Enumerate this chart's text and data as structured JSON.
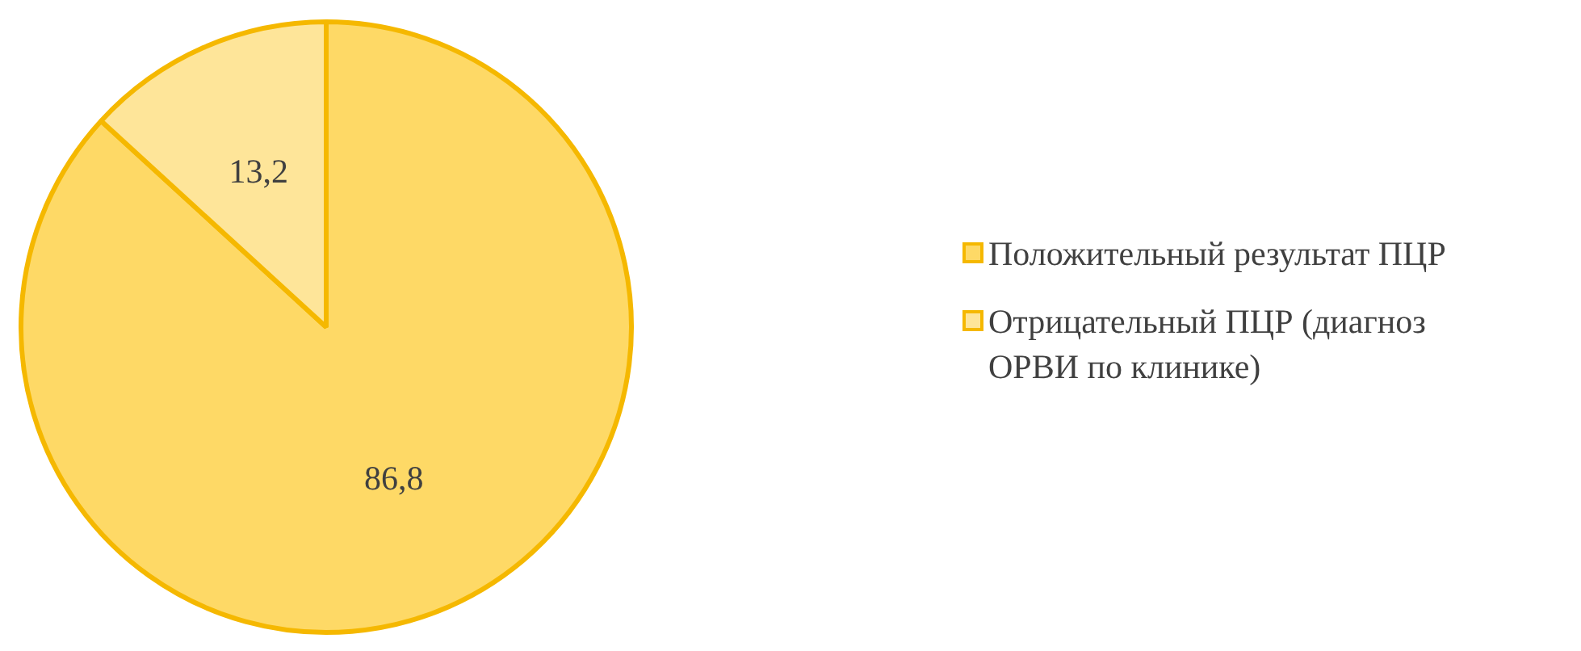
{
  "chart_data": {
    "type": "pie",
    "categories": [
      "Положительный  результат ПЦР",
      "Отрицательный ПЦР (диагноз ОРВИ по клинике)"
    ],
    "values": [
      86.8,
      13.2
    ],
    "colors": [
      "#fed966",
      "#fee599"
    ],
    "value_labels": [
      "86,8",
      "13,2"
    ],
    "legend": "right"
  }
}
